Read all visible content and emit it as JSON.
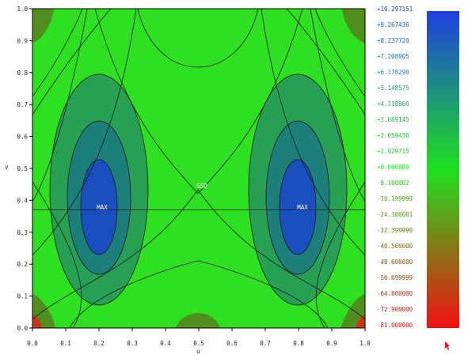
{
  "plot": {
    "x_axis_label": "u",
    "y_axis_label": "v",
    "x_ticks": [
      "0.0",
      "0.1",
      "0.2",
      "0.3",
      "0.4",
      "0.5",
      "0.6",
      "0.7",
      "0.8",
      "0.9",
      "1.0"
    ],
    "y_ticks": [
      "1.0",
      "0.9",
      "0.8",
      "0.7",
      "0.6",
      "0.5",
      "0.4",
      "0.3",
      "0.2",
      "0.1",
      "0.0"
    ],
    "annotations": {
      "max_left": "MAX",
      "max_right": "MAX",
      "saddle": "SSD"
    },
    "reference_line_v": 0.37
  },
  "colorbar": {
    "levels": [
      {
        "label": "+10.297151",
        "color": "#1a3cd0"
      },
      {
        "label": "+9.267436",
        "color": "#1c52c4"
      },
      {
        "label": "+8.237720",
        "color": "#1e62b4"
      },
      {
        "label": "+7.208005",
        "color": "#1f72a3"
      },
      {
        "label": "+6.178290",
        "color": "#218290"
      },
      {
        "label": "+5.148575",
        "color": "#23907c"
      },
      {
        "label": "+4.118860",
        "color": "#24a068"
      },
      {
        "label": "+3.089145",
        "color": "#22b050"
      },
      {
        "label": "+2.059430",
        "color": "#1ec03a"
      },
      {
        "label": "+1.029715",
        "color": "#19d426"
      },
      {
        "label": "+0.000000",
        "color": "#14e614"
      },
      {
        "label": "-8.100002",
        "color": "#37bf15"
      },
      {
        "label": "-16.199999",
        "color": "#4aa615"
      },
      {
        "label": "-24.300001",
        "color": "#5c9016"
      },
      {
        "label": "-32.399999",
        "color": "#6c7a16"
      },
      {
        "label": "-40.500000",
        "color": "#7c6616"
      },
      {
        "label": "-48.600000",
        "color": "#8e5216"
      },
      {
        "label": "-56.699999",
        "color": "#a24016"
      },
      {
        "label": "-64.800000",
        "color": "#b42c16"
      },
      {
        "label": "-72.900000",
        "color": "#c81c14"
      },
      {
        "label": "-81.000000",
        "color": "#d61010"
      }
    ],
    "gradient_top": "#1f3fe0",
    "gradient_mid": "#1ee01e",
    "gradient_bottom": "#f21010"
  },
  "colors": {
    "background_field": "#2ee020",
    "level_1": "#27a055",
    "level_2": "#1c7f7a",
    "level_3": "#1a4fc0",
    "corner_dark": "#4f8f1d",
    "corner_red": "#c8361a",
    "contour": "#1a1a1a",
    "annotation": "#ffffff"
  }
}
